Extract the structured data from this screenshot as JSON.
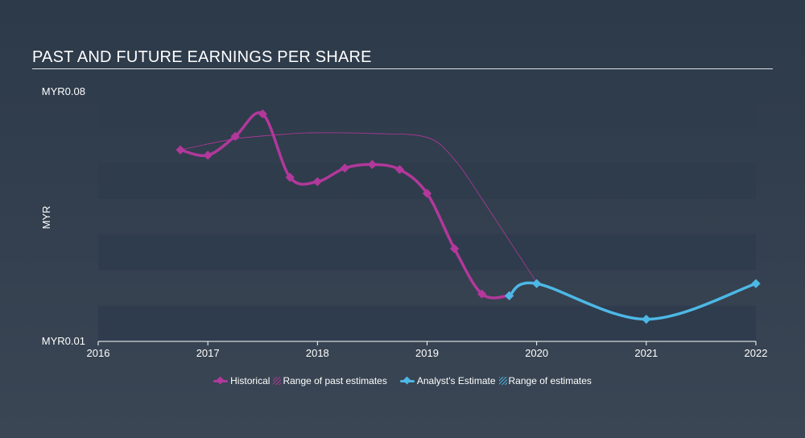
{
  "title": "PAST AND FUTURE EARNINGS PER SHARE",
  "colors": {
    "historical": "#b2389b",
    "analyst": "#4db8e6",
    "range_past": "#b2389b",
    "range_future": "#4db8e6",
    "band": "#2f3c4c"
  },
  "legend": {
    "historical": "Historical",
    "range_past": "Range of past estimates",
    "analyst": "Analyst's Estimate",
    "range_future": "Range of estimates"
  },
  "chart_data": {
    "type": "line",
    "title": "PAST AND FUTURE EARNINGS PER SHARE",
    "ylabel": "MYR",
    "xlabel": "",
    "xlim": [
      2016,
      2022
    ],
    "ylim": [
      0.01,
      0.08
    ],
    "y_tick_labels": [
      "MYR0.08",
      "MYR0.01"
    ],
    "x_tick_labels": [
      "2016",
      "2017",
      "2018",
      "2019",
      "2020",
      "2021",
      "2022"
    ],
    "x_ticks": [
      2016,
      2017,
      2018,
      2019,
      2020,
      2021,
      2022
    ],
    "grid": false,
    "legend_position": "bottom-center",
    "series": [
      {
        "name": "Historical",
        "x": [
          2016.75,
          2017.0,
          2017.25,
          2017.5,
          2017.75,
          2018.0,
          2018.25,
          2018.5,
          2018.75,
          2019.0,
          2019.25,
          2019.5,
          2019.75
        ],
        "y": [
          0.0637,
          0.0622,
          0.0675,
          0.0738,
          0.056,
          0.0548,
          0.0586,
          0.0596,
          0.0582,
          0.0515,
          0.036,
          0.0233,
          0.0228
        ]
      },
      {
        "name": "Range of past estimates",
        "x": [
          2016.75,
          2017.25,
          2017.75,
          2018.0,
          2018.5,
          2019.0,
          2019.25,
          2019.5,
          2020.0
        ],
        "y": [
          0.0637,
          0.0668,
          0.0682,
          0.0685,
          0.0683,
          0.0672,
          0.061,
          0.05,
          0.0265
        ]
      },
      {
        "name": "Analyst's Estimate",
        "x": [
          2019.75,
          2020.0,
          2021.0,
          2022.0
        ],
        "y": [
          0.0228,
          0.0262,
          0.0162,
          0.0262
        ]
      }
    ]
  }
}
